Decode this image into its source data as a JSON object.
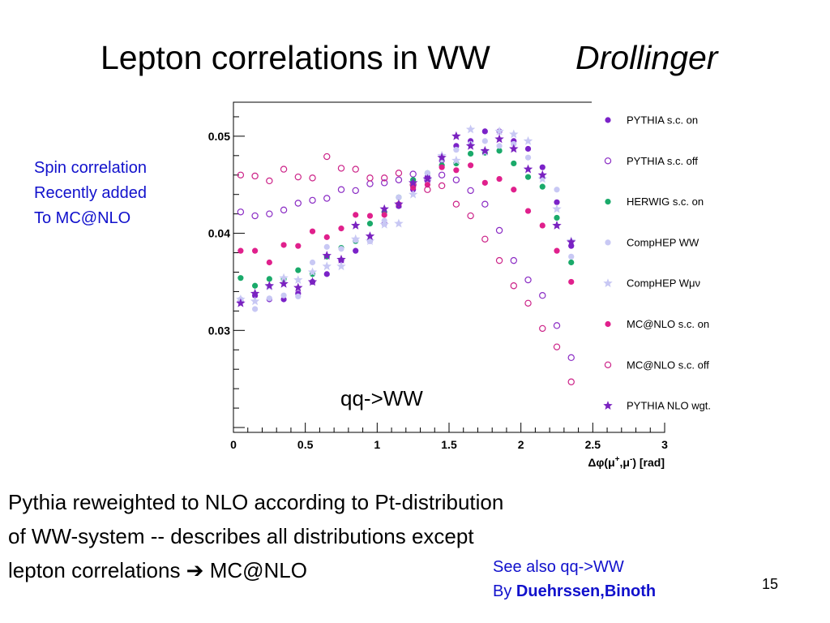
{
  "slide": {
    "title": "Lepton correlations in WW",
    "author": "Drollinger",
    "side_note": [
      "Spin correlation",
      "Recently added",
      "To MC@NLO"
    ],
    "body_lines": [
      "Pythia reweighted to NLO according to Pt-distribution",
      "of WW-system -- describes all distributions except",
      "lepton correlations ➔ MC@NLO"
    ],
    "see_also_line1": "See also qq->WW",
    "see_also_by": "By ",
    "see_also_names": "Duehrssen,Binoth",
    "page_number": "15"
  },
  "chart_data": {
    "type": "scatter",
    "title": "",
    "annotation": "qq->WW",
    "xlabel": "Δφ(μ+,μ-) [rad]",
    "ylabel": "",
    "xlim": [
      0,
      3
    ],
    "ylim": [
      0.0195,
      0.0535
    ],
    "x_ticks": [
      "0",
      "0.5",
      "1",
      "1.5",
      "2",
      "2.5",
      "3"
    ],
    "y_ticks": [
      "0.03",
      "0.04",
      "0.05"
    ],
    "grid": false,
    "legend_position": "right",
    "x": [
      0.05,
      0.15,
      0.25,
      0.35,
      0.45,
      0.55,
      0.65,
      0.75,
      0.85,
      0.95,
      1.05,
      1.15,
      1.25,
      1.35,
      1.45,
      1.55,
      1.65,
      1.75,
      1.85,
      1.95,
      2.05,
      2.15,
      2.25,
      2.35
    ],
    "series": [
      {
        "name": "PYTHIA    s.c. on",
        "marker": "filled-circle",
        "color": "#7b22c8",
        "values": [
          0.033,
          0.0336,
          0.0332,
          0.0332,
          0.0338,
          0.035,
          0.0358,
          0.0372,
          0.0382,
          0.0392,
          0.041,
          0.0428,
          0.0445,
          0.0458,
          0.0475,
          0.049,
          0.0495,
          0.0505,
          0.0505,
          0.0495,
          0.0487,
          0.0468,
          0.0432,
          0.0387
        ]
      },
      {
        "name": "PYTHIA    s.c. off",
        "marker": "open-circle",
        "color": "#8a2bc4",
        "values": [
          0.0422,
          0.0418,
          0.042,
          0.0424,
          0.0431,
          0.0434,
          0.0436,
          0.0445,
          0.0444,
          0.0451,
          0.0452,
          0.0455,
          0.0461,
          0.0455,
          0.046,
          0.0455,
          0.0444,
          0.043,
          0.0403,
          0.0372,
          0.0352,
          0.0336,
          0.0305,
          0.0272
        ]
      },
      {
        "name": "HERWIG  s.c. on",
        "marker": "filled-circle",
        "color": "#1aaa6a",
        "values": [
          0.0354,
          0.0346,
          0.0353,
          0.0353,
          0.0362,
          0.0358,
          0.0376,
          0.0385,
          0.0392,
          0.041,
          0.0422,
          0.0437,
          0.0455,
          0.0462,
          0.047,
          0.0472,
          0.0482,
          0.0483,
          0.0485,
          0.0472,
          0.0458,
          0.0448,
          0.0416,
          0.037
        ]
      },
      {
        "name": "CompHEP  WW",
        "marker": "filled-circle",
        "color": "#c8c8f4",
        "values": [
          0.0332,
          0.0322,
          0.0333,
          0.0336,
          0.0335,
          0.037,
          0.0386,
          0.0384,
          0.0393,
          0.0392,
          0.0413,
          0.0437,
          0.045,
          0.0462,
          0.0476,
          0.0486,
          0.0492,
          0.0495,
          0.049,
          0.0492,
          0.0478,
          0.0458,
          0.0445,
          0.0376
        ]
      },
      {
        "name": "CompHEP  Wμν",
        "marker": "star",
        "color": "#c8c8f4",
        "values": [
          0.0332,
          0.033,
          0.0345,
          0.0354,
          0.0352,
          0.036,
          0.0366,
          0.0366,
          0.0394,
          0.0392,
          0.0409,
          0.041,
          0.044,
          0.0455,
          0.048,
          0.0475,
          0.0507,
          0.0484,
          0.0505,
          0.0502,
          0.0495,
          0.0456,
          0.0425,
          0.0392
        ]
      },
      {
        "name": "MC@NLO s.c. on",
        "marker": "filled-circle",
        "color": "#e0208c",
        "values": [
          0.0382,
          0.0382,
          0.037,
          0.0388,
          0.0387,
          0.0402,
          0.0396,
          0.0405,
          0.0419,
          0.0418,
          0.0419,
          0.043,
          0.0447,
          0.045,
          0.0468,
          0.0465,
          0.047,
          0.0452,
          0.0456,
          0.0445,
          0.0423,
          0.0408,
          0.0382,
          0.035
        ]
      },
      {
        "name": "MC@NLO s.c. off",
        "marker": "open-circle",
        "color": "#cc2288",
        "values": [
          0.046,
          0.0459,
          0.0454,
          0.0466,
          0.0458,
          0.0457,
          0.0479,
          0.0467,
          0.0466,
          0.0457,
          0.0457,
          0.0462,
          0.045,
          0.0445,
          0.0449,
          0.043,
          0.0418,
          0.0394,
          0.0372,
          0.0346,
          0.0328,
          0.0302,
          0.0283,
          0.0247
        ]
      },
      {
        "name": "PYTHIA NLO wgt.",
        "marker": "star",
        "color": "#7a22c0",
        "values": [
          0.0328,
          0.0338,
          0.0346,
          0.0348,
          0.0344,
          0.035,
          0.0377,
          0.0373,
          0.0408,
          0.0397,
          0.0425,
          0.043,
          0.0452,
          0.0456,
          0.0478,
          0.05,
          0.049,
          0.0485,
          0.0497,
          0.0487,
          0.0466,
          0.046,
          0.0408,
          0.0391
        ]
      }
    ]
  }
}
